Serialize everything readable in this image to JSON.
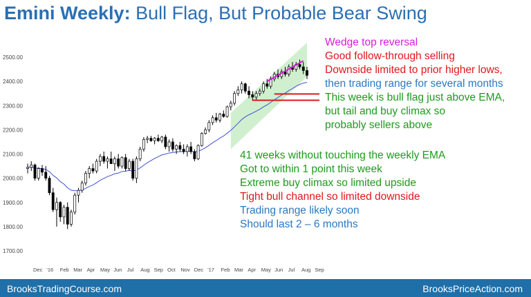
{
  "title": {
    "prefix": "Emini Weekly:",
    "rest": "Bull Flag, But Probable Bear Swing"
  },
  "chart_data": {
    "type": "candlestick",
    "yticks": [
      "2500.00",
      "2400.00",
      "2300.00",
      "2200.00",
      "2100.00",
      "2000.00",
      "1900.00",
      "1800.00",
      "1700.00"
    ],
    "ylim": [
      1680,
      2560
    ],
    "xticks": [
      "Dec",
      "'16",
      "Feb",
      "Mar",
      "Apr",
      "May",
      "Jun",
      "Jul",
      "Aug",
      "Sep",
      "Oct",
      "Nov",
      "Dec",
      "'17",
      "Feb",
      "Mar",
      "Apr",
      "May",
      "Jun",
      "Jul",
      "Aug",
      "Sep"
    ],
    "candles": [
      [
        2040,
        2060,
        2020,
        2045
      ],
      [
        2045,
        2070,
        2030,
        2055
      ],
      [
        2055,
        2060,
        1990,
        2000
      ],
      [
        2000,
        2045,
        1990,
        2040
      ],
      [
        2040,
        2055,
        2010,
        2025
      ],
      [
        2025,
        2050,
        1990,
        2000
      ],
      [
        2000,
        2010,
        1930,
        1940
      ],
      [
        1940,
        1960,
        1860,
        1870
      ],
      [
        1870,
        1920,
        1800,
        1900
      ],
      [
        1900,
        1905,
        1820,
        1840
      ],
      [
        1840,
        1890,
        1810,
        1880
      ],
      [
        1880,
        1900,
        1790,
        1810
      ],
      [
        1810,
        1870,
        1800,
        1860
      ],
      [
        1860,
        1940,
        1850,
        1930
      ],
      [
        1930,
        1960,
        1900,
        1950
      ],
      [
        1950,
        1990,
        1940,
        1980
      ],
      [
        1980,
        2030,
        1970,
        2020
      ],
      [
        2020,
        2050,
        2000,
        2040
      ],
      [
        2040,
        2060,
        2020,
        2030
      ],
      [
        2030,
        2080,
        2020,
        2070
      ],
      [
        2070,
        2100,
        2050,
        2090
      ],
      [
        2090,
        2110,
        2060,
        2070
      ],
      [
        2070,
        2090,
        2040,
        2080
      ],
      [
        2080,
        2110,
        2060,
        2060
      ],
      [
        2060,
        2090,
        2030,
        2080
      ],
      [
        2080,
        2100,
        2040,
        2050
      ],
      [
        2050,
        2090,
        2040,
        2085
      ],
      [
        2085,
        2100,
        2030,
        2040
      ],
      [
        2040,
        2080,
        2030,
        2070
      ],
      [
        2070,
        2080,
        1990,
        2000
      ],
      [
        2000,
        2090,
        1980,
        2080
      ],
      [
        2080,
        2130,
        2070,
        2120
      ],
      [
        2120,
        2170,
        2110,
        2160
      ],
      [
        2160,
        2175,
        2145,
        2165
      ],
      [
        2165,
        2175,
        2150,
        2155
      ],
      [
        2155,
        2170,
        2140,
        2165
      ],
      [
        2165,
        2180,
        2150,
        2155
      ],
      [
        2155,
        2175,
        2145,
        2170
      ],
      [
        2170,
        2180,
        2120,
        2130
      ],
      [
        2130,
        2160,
        2110,
        2150
      ],
      [
        2150,
        2165,
        2110,
        2120
      ],
      [
        2120,
        2140,
        2100,
        2135
      ],
      [
        2135,
        2150,
        2110,
        2120
      ],
      [
        2120,
        2140,
        2100,
        2110
      ],
      [
        2110,
        2140,
        2090,
        2130
      ],
      [
        2130,
        2150,
        2100,
        2110
      ],
      [
        2110,
        2120,
        2070,
        2080
      ],
      [
        2080,
        2140,
        2075,
        2135
      ],
      [
        2135,
        2190,
        2130,
        2185
      ],
      [
        2185,
        2210,
        2180,
        2200
      ],
      [
        2200,
        2240,
        2190,
        2230
      ],
      [
        2230,
        2260,
        2220,
        2250
      ],
      [
        2250,
        2270,
        2230,
        2240
      ],
      [
        2240,
        2270,
        2230,
        2265
      ],
      [
        2265,
        2280,
        2250,
        2255
      ],
      [
        2255,
        2300,
        2250,
        2295
      ],
      [
        2295,
        2320,
        2280,
        2310
      ],
      [
        2310,
        2360,
        2300,
        2350
      ],
      [
        2350,
        2380,
        2340,
        2365
      ],
      [
        2365,
        2400,
        2350,
        2390
      ],
      [
        2390,
        2395,
        2350,
        2360
      ],
      [
        2360,
        2380,
        2330,
        2345
      ],
      [
        2345,
        2360,
        2320,
        2335
      ],
      [
        2335,
        2360,
        2320,
        2350
      ],
      [
        2350,
        2370,
        2340,
        2360
      ],
      [
        2360,
        2400,
        2350,
        2390
      ],
      [
        2390,
        2410,
        2370,
        2380
      ],
      [
        2380,
        2420,
        2370,
        2410
      ],
      [
        2410,
        2440,
        2400,
        2430
      ],
      [
        2430,
        2450,
        2410,
        2420
      ],
      [
        2420,
        2450,
        2410,
        2440
      ],
      [
        2440,
        2460,
        2420,
        2430
      ],
      [
        2430,
        2470,
        2420,
        2460
      ],
      [
        2460,
        2480,
        2440,
        2450
      ],
      [
        2450,
        2480,
        2440,
        2470
      ],
      [
        2470,
        2490,
        2450,
        2460
      ],
      [
        2460,
        2480,
        2430,
        2445
      ],
      [
        2445,
        2460,
        2410,
        2425
      ]
    ],
    "notes_top": [
      {
        "text": "Wedge top reversal",
        "color": "#d81bd8"
      },
      {
        "text": "Good follow-through selling",
        "color": "#e0161a"
      },
      {
        "text": "Downside limited to prior higher lows,",
        "color": "#e0161a"
      },
      {
        "text": "then trading range for several months",
        "color": "#2a78c2"
      },
      {
        "text": "This week is bull flag just above EMA,",
        "color": "#1e9a1e"
      },
      {
        "text": "but tail and buy climax so",
        "color": "#1e9a1e"
      },
      {
        "text": "probably sellers above",
        "color": "#1e9a1e"
      }
    ],
    "notes_bottom": [
      {
        "text": "41 weeks without touching the weekly EMA",
        "color": "#1e9a1e"
      },
      {
        "text": "Got to within 1 point this week",
        "color": "#1e9a1e"
      },
      {
        "text": "Extreme buy climax so limited upside",
        "color": "#1e9a1e"
      },
      {
        "text": "Tight bull channel so limited downside",
        "color": "#e0161a"
      },
      {
        "text": "Trading range likely soon",
        "color": "#2a78c2"
      },
      {
        "text": "Should last 2 – 6 months",
        "color": "#2a78c2"
      }
    ],
    "colors": {
      "bull": "#ffffff",
      "bear": "#000000",
      "ema": "#3c4fd8",
      "channel": "#c8ecc6",
      "wedge": "#d81bd8",
      "support": "#e0161a"
    }
  },
  "footer": {
    "left": "BrooksTradingCourse.com",
    "right": "BrooksPriceAction.com"
  }
}
